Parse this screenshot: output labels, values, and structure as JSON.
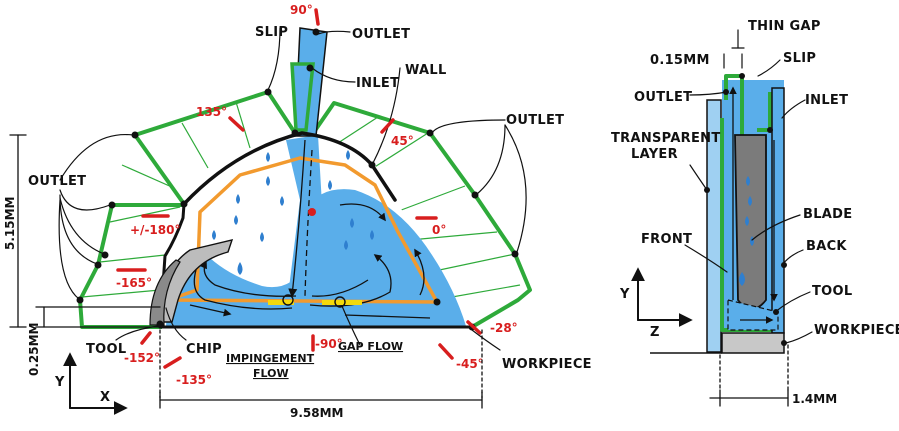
{
  "colors": {
    "fluid": "#5aaeea",
    "fluid_dark": "#2f7fcf",
    "slip": "#2eaa3a",
    "impingement_boundary": "#f29a2e",
    "angle_marker": "#d81e1e",
    "outline": "#111111",
    "tool": "#9e9e9e",
    "blade": "#7b7b7b",
    "workpiece": "#c8c8c8",
    "gap_highlight": "#f4d90c"
  },
  "left_view": {
    "labels": {
      "slip": "SLIP",
      "outlet_top": "OUTLET",
      "inlet": "INLET",
      "wall": "WALL",
      "outlet_right": "OUTLET",
      "outlet_left": "OUTLET",
      "tool": "TOOL",
      "chip": "CHIP",
      "impingement_flow_1": "IMPINGEMENT",
      "impingement_flow_2": "FLOW",
      "gap_flow": "GAP FLOW",
      "workpiece": "WORKPIECE"
    },
    "angles": {
      "a90": "90°",
      "a135": "135°",
      "a45": "45°",
      "a180": "+/-180°",
      "a0": "0°",
      "a165": "-165°",
      "a28": "-28°",
      "a152": "-152°",
      "a135n": "-135°",
      "a90n": "-90°",
      "a45n": "-45°"
    },
    "dimensions": {
      "height": "5.15MM",
      "gap": "0.25MM",
      "width": "9.58MM"
    },
    "axes": {
      "y": "Y",
      "x": "X"
    }
  },
  "right_view": {
    "labels": {
      "thin_gap": "THIN GAP",
      "gap_width": "0.15MM",
      "slip": "SLIP",
      "outlet": "OUTLET",
      "inlet": "INLET",
      "transparent_layer_1": "TRANSPARENT",
      "transparent_layer_2": "LAYER",
      "blade": "BLADE",
      "front": "FRONT",
      "back": "BACK",
      "tool": "TOOL",
      "workpiece": "WORKPIECE"
    },
    "dimensions": {
      "width": "1.4MM"
    },
    "axes": {
      "y": "Y",
      "z": "Z"
    }
  }
}
